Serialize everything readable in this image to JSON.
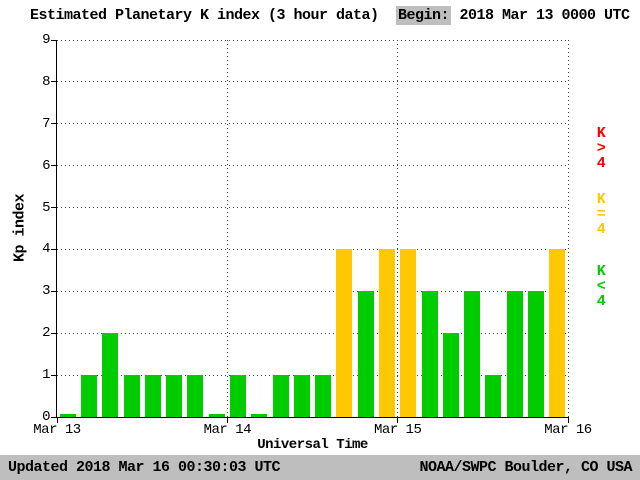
{
  "header": {
    "title": "Estimated Planetary K index (3 hour data)",
    "begin_label": "Begin:",
    "begin_value": "2018 Mar 13 0000 UTC"
  },
  "axes": {
    "ylabel": "Kp index",
    "xlabel": "Universal Time"
  },
  "legend": [
    {
      "label": "K>4",
      "color": "#ff0000"
    },
    {
      "label": "K=4",
      "color": "#ffc800"
    },
    {
      "label": "K<4",
      "color": "#00cc00"
    }
  ],
  "footer": {
    "updated": "Updated 2018 Mar 16 00:30:03 UTC",
    "source": "NOAA/SWPC Boulder, CO USA"
  },
  "chart_data": {
    "type": "bar",
    "title": "Estimated Planetary K index (3 hour data)",
    "xlabel": "Universal Time",
    "ylabel": "Kp index",
    "ylim": [
      0,
      9
    ],
    "yticks": [
      0,
      1,
      2,
      3,
      4,
      5,
      6,
      7,
      8,
      9
    ],
    "xticks": [
      "Mar 13",
      "Mar 14",
      "Mar 15",
      "Mar 16"
    ],
    "begin": "2018 Mar 13 0000 UTC",
    "bin_hours": 3,
    "values": [
      0,
      1,
      2,
      1,
      1,
      1,
      1,
      0,
      1,
      0,
      1,
      1,
      1,
      4,
      3,
      4,
      4,
      3,
      2,
      3,
      1,
      3,
      3,
      4
    ],
    "color_rules": {
      "k_lt_4": "#00cc00",
      "k_eq_4": "#ffc800",
      "k_gt_4": "#ff0000"
    },
    "grid": "dotted horizontal lines at each Kp integer, dotted vertical lines at day boundaries",
    "legend_position": "right"
  }
}
